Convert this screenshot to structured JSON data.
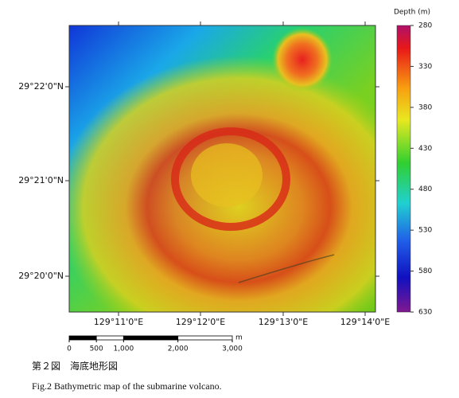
{
  "map": {
    "x_tick_labels": [
      "129°11'0\"E",
      "129°12'0\"E",
      "129°13'0\"E",
      "129°14'0\"E"
    ],
    "y_tick_labels": [
      "29°22'0\"N",
      "29°21'0\"N",
      "29°20'0\"N"
    ]
  },
  "colorbar": {
    "title": "Depth (m)",
    "range": [
      280,
      630
    ],
    "ticks": [
      280,
      330,
      380,
      430,
      480,
      530,
      580,
      630
    ]
  },
  "scale_bar": {
    "unit": "m",
    "range": [
      0,
      3000
    ],
    "ticks": [
      0,
      500,
      {
        "value": 1000,
        "label": "1,000"
      },
      {
        "value": 2000,
        "label": "2,000"
      },
      {
        "value": 3000,
        "label": "3,000"
      }
    ]
  },
  "caption": {
    "japanese": "第２図　海底地形図",
    "english": "Fig.2 Bathymetric map of the submarine volcano."
  }
}
